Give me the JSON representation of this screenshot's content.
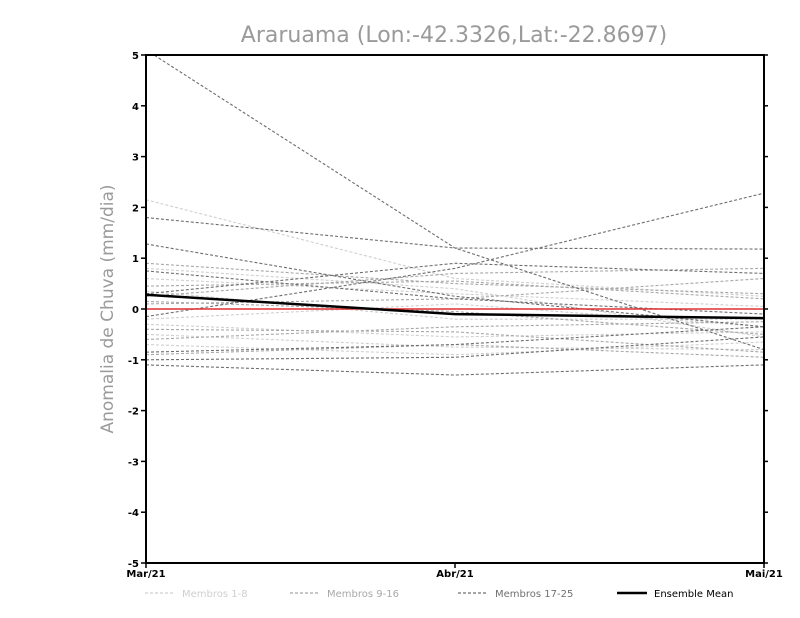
{
  "chart_data": {
    "type": "line",
    "title": "Araruama (Lon:-42.3326,Lat:-22.8697)",
    "ylabel": "Anomalia de Chuva (mm/dia)",
    "x": [
      "Mar/21",
      "Abr/21",
      "Mai/21"
    ],
    "ylim": [
      -5,
      5
    ],
    "yticks": [
      "5",
      "4",
      "3",
      "2",
      "1",
      "0",
      "-1",
      "-2",
      "-3",
      "-4",
      "-5"
    ],
    "zero_line_color": "#e03030",
    "legend": [
      {
        "label": "Membros 1-8",
        "color": "#cfcfcf",
        "dashed": true
      },
      {
        "label": "Membros 9-16",
        "color": "#a8a8a8",
        "dashed": true
      },
      {
        "label": "Membros 17-25",
        "color": "#707070",
        "dashed": true
      },
      {
        "label": "Ensemble Mean",
        "color": "#000000",
        "dashed": false
      }
    ],
    "series_groups": [
      {
        "color": "#cfcfcf",
        "members": [
          [
            2.15,
            0.6,
            0.25
          ],
          [
            0.8,
            0.4,
            -0.55
          ],
          [
            -0.3,
            -0.55,
            -0.45
          ],
          [
            -0.5,
            -0.75,
            -0.8
          ],
          [
            0.6,
            0.3,
            0.05
          ],
          [
            -0.7,
            -0.9,
            -0.65
          ],
          [
            0.35,
            -0.2,
            -0.2
          ],
          [
            -0.2,
            0.1,
            -0.35
          ]
        ]
      },
      {
        "color": "#a8a8a8",
        "members": [
          [
            0.9,
            0.5,
            0.3
          ],
          [
            0.25,
            0.7,
            0.8
          ],
          [
            -0.4,
            -0.45,
            -0.85
          ],
          [
            0.1,
            0.2,
            0.6
          ],
          [
            0.45,
            0.55,
            0.2
          ],
          [
            -0.6,
            -0.35,
            -0.25
          ],
          [
            0.15,
            -0.05,
            -0.5
          ],
          [
            -0.9,
            -0.7,
            -0.95
          ]
        ]
      },
      {
        "color": "#6e6e6e",
        "members": [
          [
            5.1,
            1.2,
            -0.8
          ],
          [
            1.8,
            1.2,
            1.18
          ],
          [
            1.28,
            0.25,
            -0.35
          ],
          [
            -0.15,
            0.8,
            2.28
          ],
          [
            -1.1,
            -1.3,
            -1.1
          ],
          [
            -0.85,
            -0.7,
            -0.35
          ],
          [
            0.75,
            0.2,
            -0.1
          ],
          [
            0.3,
            0.9,
            0.7
          ],
          [
            -1.0,
            -0.95,
            -0.55
          ]
        ]
      }
    ],
    "ensemble_mean": [
      0.28,
      -0.1,
      -0.18
    ]
  }
}
